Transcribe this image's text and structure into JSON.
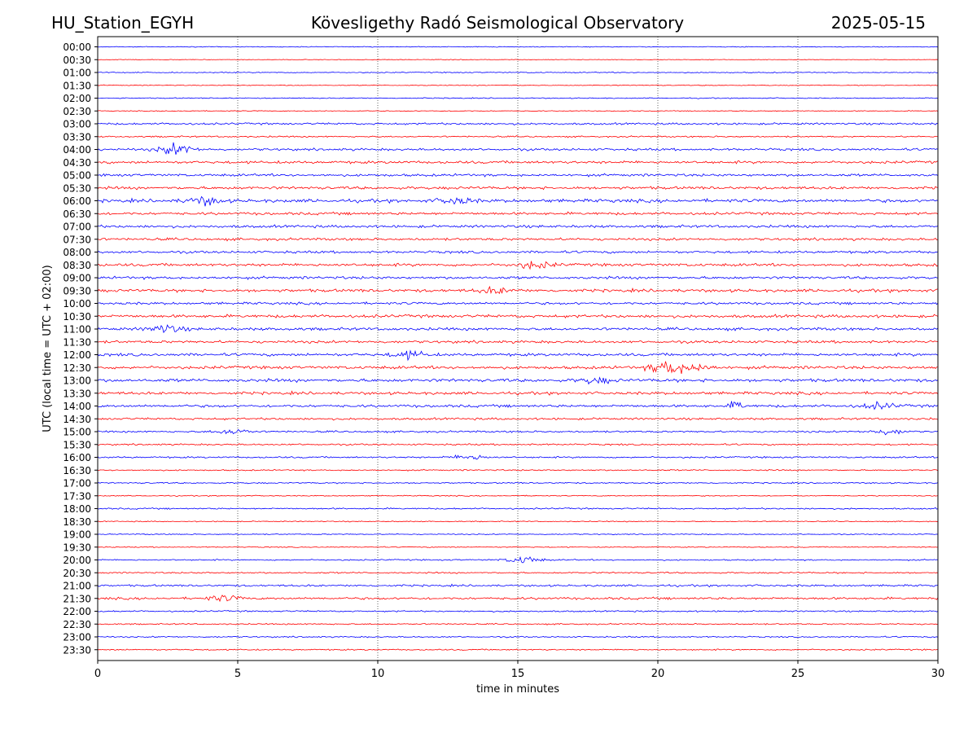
{
  "header": {
    "station": "HU_Station_EGYH",
    "title": "Kövesligethy Radó Seismological Observatory",
    "date": "2025-05-15"
  },
  "chart_data": {
    "type": "line",
    "title": "Kövesligethy Radó Seismological Observatory",
    "xlabel": "time in minutes",
    "ylabel": "UTC (local time = UTC + 02:00)",
    "xlim": [
      0,
      30
    ],
    "xticks": [
      0,
      5,
      10,
      15,
      20,
      25,
      30
    ],
    "grid": "vertical dotted lines at x ticks",
    "row_labels": [
      "00:00",
      "00:30",
      "01:00",
      "01:30",
      "02:00",
      "02:30",
      "03:00",
      "03:30",
      "04:00",
      "04:30",
      "05:00",
      "05:30",
      "06:00",
      "06:30",
      "07:00",
      "07:30",
      "08:00",
      "08:30",
      "09:00",
      "09:30",
      "10:00",
      "10:30",
      "11:00",
      "11:30",
      "12:00",
      "12:30",
      "13:00",
      "13:30",
      "14:00",
      "14:30",
      "15:00",
      "15:30",
      "16:00",
      "16:30",
      "17:00",
      "17:30",
      "18:00",
      "18:30",
      "19:00",
      "19:30",
      "20:00",
      "20:30",
      "21:00",
      "21:30",
      "22:00",
      "22:30",
      "23:00",
      "23:30"
    ],
    "colors": [
      "#0000ff",
      "#ff0000"
    ],
    "noise_levels": [
      0.5,
      0.4,
      0.6,
      0.5,
      0.6,
      0.5,
      1.2,
      0.9,
      1.4,
      1.6,
      1.5,
      1.7,
      2.0,
      1.6,
      1.6,
      1.5,
      1.5,
      1.7,
      1.6,
      1.8,
      1.5,
      1.8,
      1.7,
      1.6,
      1.7,
      1.8,
      1.9,
      1.7,
      1.6,
      1.3,
      1.1,
      1.0,
      1.0,
      0.8,
      0.8,
      0.6,
      0.9,
      0.6,
      0.6,
      0.6,
      0.8,
      0.9,
      1.2,
      1.4,
      0.9,
      0.8,
      0.8,
      0.8
    ],
    "events": [
      {
        "row": "04:00",
        "minute": 2.8,
        "amplitude": 6
      },
      {
        "row": "06:00",
        "minute": 3.8,
        "amplitude": 4
      },
      {
        "row": "06:00",
        "minute": 12.8,
        "amplitude": 3.5
      },
      {
        "row": "08:30",
        "minute": 15.6,
        "amplitude": 4
      },
      {
        "row": "09:30",
        "minute": 14.2,
        "amplitude": 3
      },
      {
        "row": "11:00",
        "minute": 2.4,
        "amplitude": 4
      },
      {
        "row": "12:00",
        "minute": 11.1,
        "amplitude": 4
      },
      {
        "row": "12:30",
        "minute": 20.3,
        "amplitude": 7
      },
      {
        "row": "12:30",
        "minute": 21.3,
        "amplitude": 4
      },
      {
        "row": "13:00",
        "minute": 17.8,
        "amplitude": 3
      },
      {
        "row": "14:00",
        "minute": 22.8,
        "amplitude": 10
      },
      {
        "row": "14:00",
        "minute": 27.9,
        "amplitude": 3
      },
      {
        "row": "15:00",
        "minute": 4.8,
        "amplitude": 3
      },
      {
        "row": "15:00",
        "minute": 28.2,
        "amplitude": 3
      },
      {
        "row": "16:00",
        "minute": 13.3,
        "amplitude": 3
      },
      {
        "row": "20:00",
        "minute": 15.2,
        "amplitude": 4
      },
      {
        "row": "21:30",
        "minute": 4.5,
        "amplitude": 3
      }
    ]
  }
}
